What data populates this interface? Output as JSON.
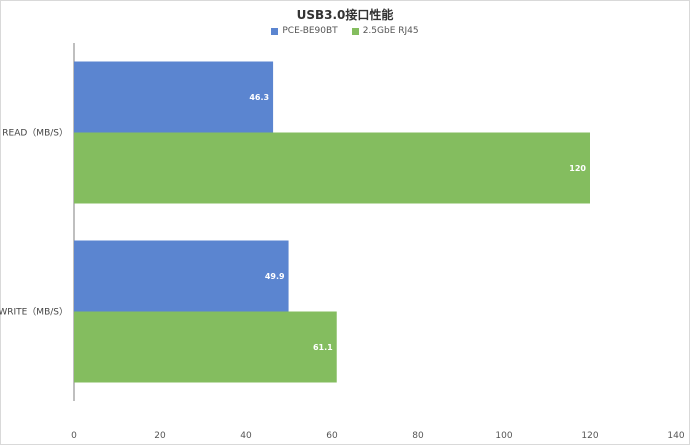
{
  "chart_data": {
    "type": "bar",
    "orientation": "horizontal",
    "title": "USB3.0接口性能",
    "categories": [
      "READ（MB/S）",
      "WRITE（MB/S）"
    ],
    "series": [
      {
        "name": "PCE-BE90BT",
        "values": [
          46.3,
          49.9
        ],
        "color": "#5b85d0"
      },
      {
        "name": "2.5GbE RJ45",
        "values": [
          120,
          61.1
        ],
        "color": "#84bd5f"
      }
    ],
    "xlim": [
      0,
      140
    ],
    "xticks": [
      "0",
      "20",
      "40",
      "60",
      "80",
      "100",
      "120",
      "140"
    ],
    "grid": false,
    "legend_position": "top"
  }
}
